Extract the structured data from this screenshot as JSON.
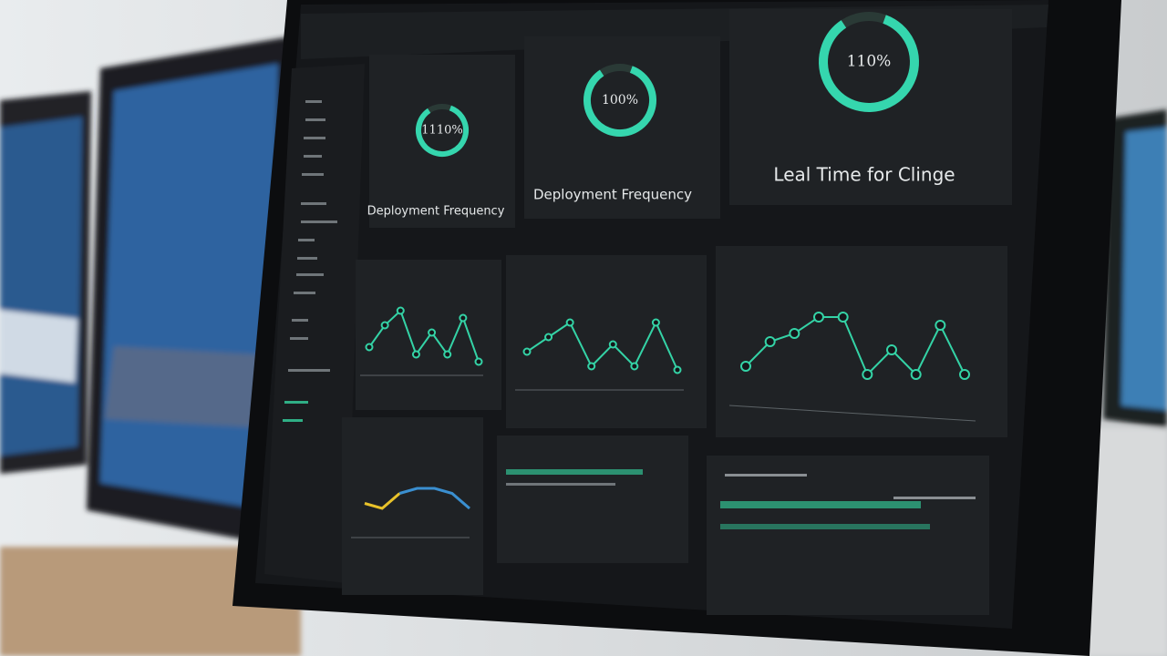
{
  "cards": [
    {
      "value_label": "1110%",
      "title": "Deployment Frequency"
    },
    {
      "value_label": "100%",
      "title": "Deployment Frequency"
    },
    {
      "value_label": "110%",
      "title": "Leal Time for Clinge"
    }
  ],
  "line_charts": [
    {
      "ylim": [
        0,
        10
      ],
      "series": [
        {
          "color": "#34d3a6",
          "values": [
            3,
            6,
            8,
            2,
            5,
            2,
            7,
            1
          ]
        }
      ]
    },
    {
      "ylim": [
        0,
        10
      ],
      "series": [
        {
          "color": "#34d3a6",
          "values": [
            3,
            5,
            7,
            1,
            4,
            1,
            7,
            0.5
          ]
        }
      ]
    },
    {
      "ylim": [
        0,
        10
      ],
      "series": [
        {
          "color": "#34d3a6",
          "values": [
            2,
            5,
            6,
            8,
            8,
            1,
            4,
            1,
            7,
            1
          ]
        }
      ]
    },
    {
      "ylim": [
        0,
        10
      ],
      "series": [
        {
          "color": "#e8c22a",
          "values": [
            5,
            4,
            7,
            null,
            null,
            null,
            null
          ]
        },
        {
          "color": "#3a8fd0",
          "values": [
            null,
            null,
            7,
            8,
            8,
            7,
            4
          ]
        }
      ]
    }
  ]
}
